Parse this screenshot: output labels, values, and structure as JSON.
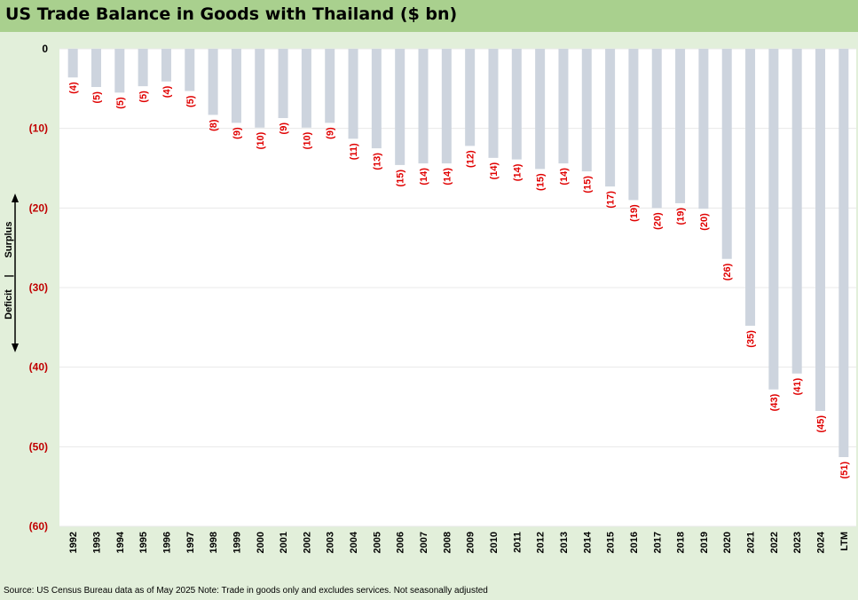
{
  "colors": {
    "bar": "#cdd4de",
    "negative_label": "#e00000",
    "title_band": "#a9d08e",
    "background": "#e2efda",
    "gridline": "#e8e8e8"
  },
  "chart_data": {
    "type": "bar",
    "title": "US Trade Balance in Goods with Thailand ($ bn)",
    "ylabel_top": "Surplus",
    "ylabel_divider": "|",
    "ylabel_bottom": "Deficit",
    "categories": [
      "1992",
      "1993",
      "1994",
      "1995",
      "1996",
      "1997",
      "1998",
      "1999",
      "2000",
      "2001",
      "2002",
      "2003",
      "2004",
      "2005",
      "2006",
      "2007",
      "2008",
      "2009",
      "2010",
      "2011",
      "2012",
      "2013",
      "2014",
      "2015",
      "2016",
      "2017",
      "2018",
      "2019",
      "2020",
      "2021",
      "2022",
      "2023",
      "2024",
      "LTM"
    ],
    "values": [
      -3.6,
      -4.8,
      -5.5,
      -4.7,
      -4.1,
      -5.3,
      -8.3,
      -9.3,
      -9.9,
      -8.7,
      -9.9,
      -9.3,
      -11.3,
      -12.5,
      -14.6,
      -14.4,
      -14.4,
      -12.2,
      -13.7,
      -13.9,
      -15.1,
      -14.4,
      -15.4,
      -17.3,
      -19.0,
      -20.0,
      -19.4,
      -20.1,
      -26.4,
      -34.8,
      -42.8,
      -40.8,
      -45.5,
      -51.3
    ],
    "data_labels": [
      "(4)",
      "(5)",
      "(5)",
      "(5)",
      "(4)",
      "(5)",
      "(8)",
      "(9)",
      "(10)",
      "(9)",
      "(10)",
      "(9)",
      "(11)",
      "(13)",
      "(15)",
      "(14)",
      "(14)",
      "(12)",
      "(14)",
      "(14)",
      "(15)",
      "(14)",
      "(15)",
      "(17)",
      "(19)",
      "(20)",
      "(19)",
      "(20)",
      "(26)",
      "(35)",
      "(43)",
      "(41)",
      "(45)",
      "(51)"
    ],
    "yticks": [
      0,
      -10,
      -20,
      -30,
      -40,
      -50,
      -60
    ],
    "ytick_labels": [
      "0",
      "(10)",
      "(20)",
      "(30)",
      "(40)",
      "(50)",
      "(60)"
    ],
    "ylim": [
      -60,
      0
    ],
    "grid": true,
    "legend": "none"
  },
  "footer": {
    "source": "Source: US Census Bureau data as of May 2025 Note: Trade in goods only and excludes services. Not seasonally adjusted"
  }
}
